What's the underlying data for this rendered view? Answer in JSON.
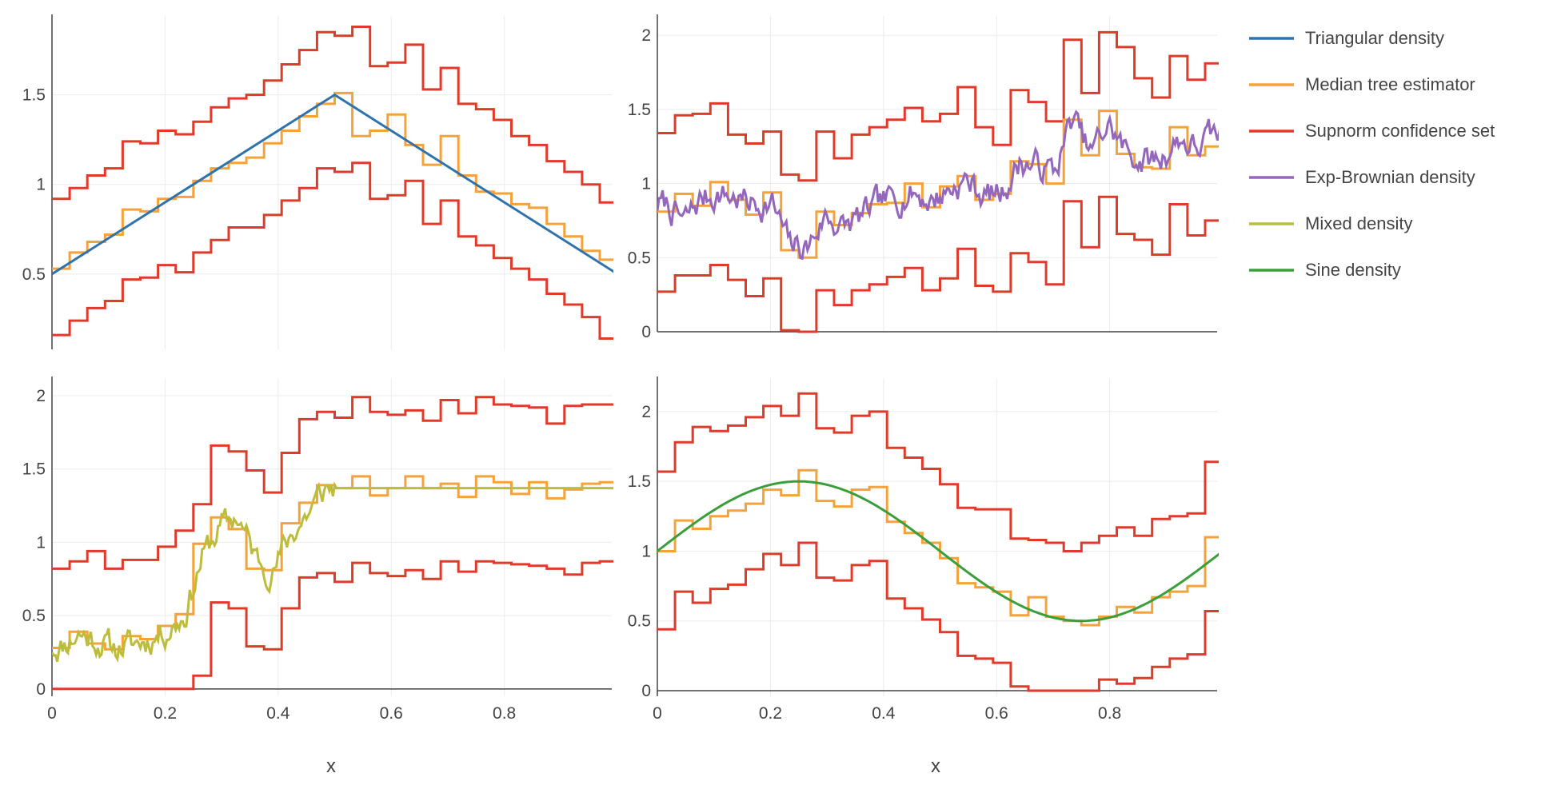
{
  "colors": {
    "triangular": "#2f73ad",
    "median": "#f5a23a",
    "supnorm": "#e03a2a",
    "expbrownian": "#9467bd",
    "mixed": "#bcbd3a",
    "sine": "#3a9e3a",
    "grid": "#ebebeb",
    "axis": "#444444",
    "text": "#444444"
  },
  "legend": {
    "items": [
      {
        "label": "Triangular  density",
        "color_key": "triangular"
      },
      {
        "label": "Median tree estimator",
        "color_key": "median"
      },
      {
        "label": "Supnorm confidence set",
        "color_key": "supnorm"
      },
      {
        "label": "Exp-Brownian  density",
        "color_key": "expbrownian"
      },
      {
        "label": "Mixed  density",
        "color_key": "mixed"
      },
      {
        "label": "Sine  density",
        "color_key": "sine"
      }
    ]
  },
  "axis_titles": {
    "bottom_left": "x",
    "bottom_right": "x"
  },
  "chart_data": [
    {
      "id": "triangular",
      "type": "line",
      "xlim": [
        0,
        1
      ],
      "ylim": [
        0.08,
        1.94
      ],
      "xticks": [
        0,
        0.2,
        0.4,
        0.6,
        0.8
      ],
      "xtick_labels": [
        "",
        "",
        "",
        "",
        ""
      ],
      "yticks": [
        0.5,
        1,
        1.5
      ],
      "ytick_labels": [
        "0.5",
        "1",
        "1.5"
      ],
      "bin_edges": [
        0,
        0.03125,
        0.0625,
        0.09375,
        0.125,
        0.15625,
        0.1875,
        0.21875,
        0.25,
        0.28125,
        0.3125,
        0.34375,
        0.375,
        0.40625,
        0.4375,
        0.46875,
        0.5,
        0.53125,
        0.5625,
        0.59375,
        0.625,
        0.65625,
        0.6875,
        0.71875,
        0.75,
        0.78125,
        0.8125,
        0.84375,
        0.875,
        0.90625,
        0.9375,
        0.96875,
        1
      ],
      "series": [
        {
          "name": "Supnorm upper",
          "color_key": "supnorm",
          "kind": "step",
          "values": [
            0.92,
            0.98,
            1.05,
            1.09,
            1.24,
            1.23,
            1.3,
            1.28,
            1.35,
            1.43,
            1.48,
            1.5,
            1.58,
            1.67,
            1.75,
            1.85,
            1.83,
            1.88,
            1.66,
            1.68,
            1.78,
            1.53,
            1.65,
            1.45,
            1.42,
            1.36,
            1.27,
            1.22,
            1.13,
            1.07,
            1.0,
            0.9
          ]
        },
        {
          "name": "Supnorm lower",
          "color_key": "supnorm",
          "kind": "step",
          "values": [
            0.16,
            0.24,
            0.31,
            0.35,
            0.47,
            0.48,
            0.55,
            0.51,
            0.62,
            0.69,
            0.76,
            0.76,
            0.83,
            0.91,
            0.98,
            1.09,
            1.07,
            1.12,
            0.92,
            0.94,
            1.02,
            0.78,
            0.91,
            0.71,
            0.66,
            0.59,
            0.53,
            0.47,
            0.39,
            0.33,
            0.26,
            0.14
          ]
        },
        {
          "name": "Median tree estimator",
          "color_key": "median",
          "kind": "step",
          "values": [
            0.53,
            0.62,
            0.68,
            0.72,
            0.86,
            0.85,
            0.92,
            0.93,
            1.02,
            1.09,
            1.12,
            1.15,
            1.23,
            1.3,
            1.38,
            1.45,
            1.51,
            1.27,
            1.3,
            1.39,
            1.22,
            1.11,
            1.27,
            1.05,
            0.96,
            0.95,
            0.89,
            0.87,
            0.78,
            0.71,
            0.63,
            0.58
          ]
        },
        {
          "name": "Triangular  density",
          "color_key": "triangular",
          "kind": "line",
          "x": [
            0,
            0.5,
            1
          ],
          "y": [
            0.5,
            1.5,
            0.5
          ]
        }
      ]
    },
    {
      "id": "expbrownian",
      "type": "line",
      "xlim": [
        0,
        1
      ],
      "ylim": [
        0,
        2.13
      ],
      "xticks": [
        0,
        0.2,
        0.4,
        0.6,
        0.8
      ],
      "xtick_labels": [
        "",
        "",
        "",
        "",
        ""
      ],
      "yticks": [
        0,
        0.5,
        1,
        1.5,
        2
      ],
      "ytick_labels": [
        "0",
        "0.5",
        "1",
        "1.5",
        "2"
      ],
      "bin_edges": [
        0,
        0.03125,
        0.0625,
        0.09375,
        0.125,
        0.15625,
        0.1875,
        0.21875,
        0.25,
        0.28125,
        0.3125,
        0.34375,
        0.375,
        0.40625,
        0.4375,
        0.46875,
        0.5,
        0.53125,
        0.5625,
        0.59375,
        0.625,
        0.65625,
        0.6875,
        0.71875,
        0.75,
        0.78125,
        0.8125,
        0.84375,
        0.875,
        0.90625,
        0.9375,
        0.96875,
        1
      ],
      "series": [
        {
          "name": "Supnorm upper",
          "color_key": "supnorm",
          "kind": "step",
          "values": [
            1.34,
            1.46,
            1.47,
            1.54,
            1.33,
            1.27,
            1.35,
            1.06,
            1.02,
            1.35,
            1.17,
            1.33,
            1.38,
            1.43,
            1.51,
            1.42,
            1.47,
            1.65,
            1.38,
            1.26,
            1.63,
            1.55,
            1.42,
            1.97,
            1.61,
            2.02,
            1.92,
            1.71,
            1.58,
            1.86,
            1.7,
            1.81
          ]
        },
        {
          "name": "Supnorm lower",
          "color_key": "supnorm",
          "kind": "step",
          "values": [
            0.27,
            0.38,
            0.38,
            0.45,
            0.35,
            0.24,
            0.36,
            0.01,
            0.0,
            0.28,
            0.18,
            0.28,
            0.32,
            0.37,
            0.43,
            0.28,
            0.36,
            0.56,
            0.31,
            0.27,
            0.53,
            0.47,
            0.32,
            0.88,
            0.57,
            0.91,
            0.66,
            0.62,
            0.52,
            0.86,
            0.65,
            0.75
          ]
        },
        {
          "name": "Median tree estimator",
          "color_key": "median",
          "kind": "step",
          "values": [
            0.81,
            0.93,
            0.85,
            1.01,
            0.89,
            0.79,
            0.94,
            0.55,
            0.5,
            0.81,
            0.72,
            0.8,
            0.86,
            0.87,
            1.0,
            0.84,
            0.98,
            1.05,
            0.89,
            0.93,
            1.15,
            1.13,
            1.0,
            1.43,
            1.19,
            1.49,
            1.2,
            1.11,
            1.1,
            1.38,
            1.19,
            1.25
          ]
        },
        {
          "name": "Exp-Brownian  density",
          "color_key": "expbrownian",
          "kind": "walk",
          "seed": 7,
          "anchors": [
            0.86,
            0.74,
            0.9,
            0.93,
            0.9,
            0.86,
            0.86,
            0.58,
            0.57,
            0.78,
            0.7,
            0.77,
            0.86,
            0.9,
            0.94,
            0.88,
            0.96,
            1.02,
            0.92,
            0.94,
            1.14,
            1.12,
            1.08,
            1.45,
            1.2,
            1.4,
            1.22,
            1.15,
            1.17,
            1.3,
            1.24,
            1.33
          ]
        }
      ]
    },
    {
      "id": "mixed",
      "type": "line",
      "xlim": [
        0,
        1
      ],
      "ylim": [
        -0.05,
        2.12
      ],
      "xticks": [
        0,
        0.2,
        0.4,
        0.6,
        0.8
      ],
      "xtick_labels": [
        "0",
        "0.2",
        "0.4",
        "0.6",
        "0.8"
      ],
      "yticks": [
        0,
        0.5,
        1,
        1.5,
        2
      ],
      "ytick_labels": [
        "0",
        "0.5",
        "1",
        "1.5",
        "2"
      ],
      "xlabel": "x",
      "bin_edges": [
        0,
        0.03125,
        0.0625,
        0.09375,
        0.125,
        0.15625,
        0.1875,
        0.21875,
        0.25,
        0.28125,
        0.3125,
        0.34375,
        0.375,
        0.40625,
        0.4375,
        0.46875,
        0.5,
        0.53125,
        0.5625,
        0.59375,
        0.625,
        0.65625,
        0.6875,
        0.71875,
        0.75,
        0.78125,
        0.8125,
        0.84375,
        0.875,
        0.90625,
        0.9375,
        0.96875,
        1
      ],
      "series": [
        {
          "name": "Supnorm upper",
          "color_key": "supnorm",
          "kind": "step",
          "values": [
            0.82,
            0.87,
            0.94,
            0.82,
            0.88,
            0.88,
            0.97,
            1.08,
            1.26,
            1.66,
            1.62,
            1.49,
            1.34,
            1.61,
            1.84,
            1.89,
            1.85,
            1.99,
            1.89,
            1.87,
            1.9,
            1.83,
            1.97,
            1.88,
            1.99,
            1.94,
            1.93,
            1.92,
            1.81,
            1.93,
            1.94,
            1.94
          ]
        },
        {
          "name": "Supnorm lower",
          "color_key": "supnorm",
          "kind": "step",
          "values": [
            0.0,
            0.0,
            0.0,
            0.0,
            0.0,
            0.0,
            0.0,
            0.0,
            0.09,
            0.59,
            0.55,
            0.29,
            0.27,
            0.55,
            0.76,
            0.79,
            0.73,
            0.86,
            0.79,
            0.77,
            0.81,
            0.75,
            0.87,
            0.8,
            0.87,
            0.86,
            0.85,
            0.84,
            0.82,
            0.78,
            0.86,
            0.87
          ]
        },
        {
          "name": "Median tree estimator",
          "color_key": "median",
          "kind": "step",
          "values": [
            0.28,
            0.39,
            0.31,
            0.27,
            0.36,
            0.34,
            0.43,
            0.51,
            0.99,
            1.17,
            1.09,
            0.82,
            0.81,
            1.13,
            1.27,
            1.39,
            1.37,
            1.45,
            1.32,
            1.37,
            1.45,
            1.37,
            1.4,
            1.31,
            1.45,
            1.41,
            1.33,
            1.41,
            1.3,
            1.36,
            1.4,
            1.41
          ]
        },
        {
          "name": "Mixed  density",
          "color_key": "mixed",
          "kind": "walk",
          "seed": 11,
          "anchors": [
            0.29,
            0.38,
            0.33,
            0.28,
            0.3,
            0.34,
            0.4,
            0.5,
            0.9,
            1.1,
            1.18,
            0.9,
            0.8,
            1.05,
            1.2,
            1.37,
            1.37,
            1.37,
            1.37,
            1.37,
            1.37,
            1.37,
            1.37,
            1.37,
            1.37,
            1.37,
            1.37,
            1.37,
            1.37,
            1.37,
            1.37,
            1.37
          ]
        }
      ]
    },
    {
      "id": "sine",
      "type": "line",
      "xlim": [
        0,
        1
      ],
      "ylim": [
        -0.04,
        2.24
      ],
      "xticks": [
        0,
        0.2,
        0.4,
        0.6,
        0.8
      ],
      "xtick_labels": [
        "0",
        "0.2",
        "0.4",
        "0.6",
        "0.8"
      ],
      "yticks": [
        0,
        0.5,
        1,
        1.5,
        2
      ],
      "ytick_labels": [
        "0",
        "0.5",
        "1",
        "1.5",
        "2"
      ],
      "xlabel": "x",
      "bin_edges": [
        0,
        0.03125,
        0.0625,
        0.09375,
        0.125,
        0.15625,
        0.1875,
        0.21875,
        0.25,
        0.28125,
        0.3125,
        0.34375,
        0.375,
        0.40625,
        0.4375,
        0.46875,
        0.5,
        0.53125,
        0.5625,
        0.59375,
        0.625,
        0.65625,
        0.6875,
        0.71875,
        0.75,
        0.78125,
        0.8125,
        0.84375,
        0.875,
        0.90625,
        0.9375,
        0.96875,
        1
      ],
      "series": [
        {
          "name": "Supnorm upper",
          "color_key": "supnorm",
          "kind": "step",
          "values": [
            1.57,
            1.78,
            1.89,
            1.86,
            1.9,
            1.96,
            2.04,
            1.97,
            2.13,
            1.88,
            1.85,
            1.97,
            2.0,
            1.74,
            1.67,
            1.59,
            1.48,
            1.31,
            1.3,
            1.3,
            1.09,
            1.08,
            1.06,
            1.0,
            1.06,
            1.11,
            1.17,
            1.11,
            1.23,
            1.25,
            1.27,
            1.64
          ]
        },
        {
          "name": "Supnorm lower",
          "color_key": "supnorm",
          "kind": "step",
          "values": [
            0.44,
            0.71,
            0.63,
            0.73,
            0.76,
            0.87,
            0.98,
            0.9,
            1.06,
            0.81,
            0.79,
            0.9,
            0.93,
            0.66,
            0.59,
            0.51,
            0.42,
            0.25,
            0.23,
            0.2,
            0.03,
            0.0,
            0.0,
            0.0,
            0.0,
            0.08,
            0.05,
            0.09,
            0.17,
            0.23,
            0.26,
            0.57
          ]
        },
        {
          "name": "Median tree estimator",
          "color_key": "median",
          "kind": "step",
          "values": [
            1.0,
            1.22,
            1.16,
            1.25,
            1.29,
            1.34,
            1.44,
            1.4,
            1.58,
            1.36,
            1.32,
            1.44,
            1.46,
            1.21,
            1.13,
            1.06,
            0.95,
            0.77,
            0.74,
            0.71,
            0.54,
            0.67,
            0.53,
            0.5,
            0.47,
            0.53,
            0.6,
            0.56,
            0.67,
            0.71,
            0.75,
            1.1
          ]
        },
        {
          "name": "Sine  density",
          "color_key": "sine",
          "kind": "func",
          "formula": "1 + 0.5*sin(2*pi*x)"
        }
      ]
    }
  ]
}
